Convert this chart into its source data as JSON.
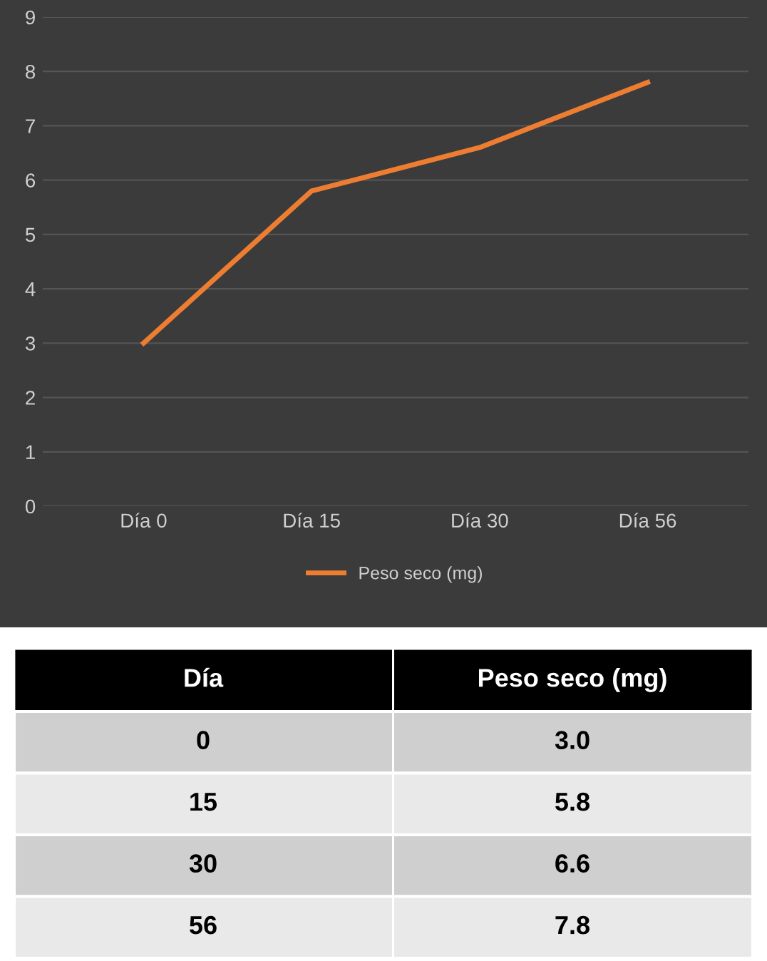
{
  "chart_data": {
    "type": "line",
    "categories": [
      "Día 0",
      "Día 15",
      "Día 30",
      "Día 56"
    ],
    "series": [
      {
        "name": "Peso seco (mg)",
        "color": "#ed7d31",
        "values": [
          3.0,
          5.8,
          6.6,
          7.8
        ]
      }
    ],
    "ylim": [
      0,
      9
    ],
    "yticks": [
      0,
      1,
      2,
      3,
      4,
      5,
      6,
      7,
      8,
      9
    ],
    "grid": "y",
    "legend": "bottom",
    "marker": "none",
    "line_style": "solid",
    "annotations": [
      "Día",
      "0",
      "15",
      "30",
      "56",
      "3.0",
      "5.8",
      "6.6",
      "7.8"
    ]
  }
}
